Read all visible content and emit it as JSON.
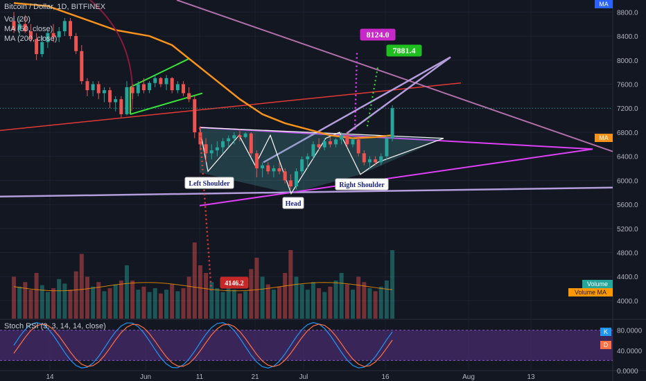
{
  "header": {
    "symbol_line": "Bitcoin / Dollar, 1D, BITFINEX",
    "vol_label": "Vol (20)",
    "ma50_label": "MA (50, close)",
    "ma200_label": "MA (200, close)"
  },
  "rsi_panel": {
    "label": "Stoch RSI (3, 3, 14, 14, close)",
    "k_badge": "K",
    "d_badge": "D"
  },
  "badges": {
    "ma_top": "MA",
    "ma_mid": "MA",
    "volume": "Volume",
    "volume_ma": "Volume MA"
  },
  "colors": {
    "up": "#26a69a",
    "down": "#ef5350",
    "ma50": "#f7931a",
    "magenta": "#e040fb",
    "lavender": "#b39ddb",
    "red_line": "#e53935",
    "green": "#39e639",
    "rsi_k": "#2196f3",
    "rsi_d": "#ff7043",
    "rsi_band": "#4a2c6e"
  },
  "chart_data": {
    "type": "candlestick",
    "title": "Bitcoin / Dollar, 1D, BITFINEX",
    "price_axis": {
      "range": [
        3700,
        9000
      ],
      "ticks": [
        "8800.0",
        "8400.0",
        "8000.0",
        "7600.0",
        "7200.0",
        "6800.0",
        "6400.0",
        "6000.0",
        "5600.0",
        "5200.0",
        "4800.0",
        "4400.0",
        "4000.0"
      ]
    },
    "time_axis": {
      "labels": [
        "14",
        "Jun",
        "11",
        "21",
        "Jul",
        "16",
        "Aug",
        "13"
      ]
    },
    "rsi_axis": {
      "ticks": [
        "80.0000",
        "40.0000",
        "0.0000"
      ],
      "range": [
        0,
        100
      ]
    },
    "candles": [
      {
        "o": 8650,
        "h": 8800,
        "l": 8450,
        "c": 8500
      },
      {
        "o": 8500,
        "h": 8700,
        "l": 8400,
        "c": 8600
      },
      {
        "o": 8600,
        "h": 8750,
        "l": 8450,
        "c": 8480
      },
      {
        "o": 8480,
        "h": 8600,
        "l": 8300,
        "c": 8350
      },
      {
        "o": 8350,
        "h": 8450,
        "l": 8000,
        "c": 8100
      },
      {
        "o": 8100,
        "h": 8400,
        "l": 8050,
        "c": 8300
      },
      {
        "o": 8300,
        "h": 8500,
        "l": 8200,
        "c": 8450
      },
      {
        "o": 8450,
        "h": 8600,
        "l": 8300,
        "c": 8380
      },
      {
        "o": 8380,
        "h": 8550,
        "l": 8300,
        "c": 8480
      },
      {
        "o": 8480,
        "h": 8700,
        "l": 8400,
        "c": 8650
      },
      {
        "o": 8650,
        "h": 8700,
        "l": 8350,
        "c": 8400
      },
      {
        "o": 8400,
        "h": 8450,
        "l": 8100,
        "c": 8150
      },
      {
        "o": 8150,
        "h": 8250,
        "l": 7600,
        "c": 7650
      },
      {
        "o": 7650,
        "h": 7700,
        "l": 7400,
        "c": 7500
      },
      {
        "o": 7500,
        "h": 7650,
        "l": 7400,
        "c": 7600
      },
      {
        "o": 7600,
        "h": 7650,
        "l": 7350,
        "c": 7450
      },
      {
        "o": 7450,
        "h": 7550,
        "l": 7300,
        "c": 7500
      },
      {
        "o": 7500,
        "h": 7550,
        "l": 7200,
        "c": 7300
      },
      {
        "o": 7300,
        "h": 7400,
        "l": 7150,
        "c": 7350
      },
      {
        "o": 7350,
        "h": 7400,
        "l": 7050,
        "c": 7100
      },
      {
        "o": 7100,
        "h": 7650,
        "l": 7080,
        "c": 7550
      },
      {
        "o": 7550,
        "h": 7600,
        "l": 7350,
        "c": 7450
      },
      {
        "o": 7450,
        "h": 7650,
        "l": 7400,
        "c": 7600
      },
      {
        "o": 7600,
        "h": 7700,
        "l": 7450,
        "c": 7500
      },
      {
        "o": 7500,
        "h": 7650,
        "l": 7450,
        "c": 7620
      },
      {
        "o": 7620,
        "h": 7750,
        "l": 7550,
        "c": 7700
      },
      {
        "o": 7700,
        "h": 7720,
        "l": 7550,
        "c": 7600
      },
      {
        "o": 7600,
        "h": 7750,
        "l": 7500,
        "c": 7700
      },
      {
        "o": 7700,
        "h": 7720,
        "l": 7450,
        "c": 7500
      },
      {
        "o": 7500,
        "h": 7650,
        "l": 7450,
        "c": 7600
      },
      {
        "o": 7600,
        "h": 7650,
        "l": 7400,
        "c": 7450
      },
      {
        "o": 7450,
        "h": 7550,
        "l": 7300,
        "c": 7350
      },
      {
        "o": 7350,
        "h": 7400,
        "l": 6700,
        "c": 6800
      },
      {
        "o": 6800,
        "h": 6900,
        "l": 6500,
        "c": 6600
      },
      {
        "o": 6600,
        "h": 6700,
        "l": 6300,
        "c": 6450
      },
      {
        "o": 6450,
        "h": 6600,
        "l": 6350,
        "c": 6500
      },
      {
        "o": 6500,
        "h": 6650,
        "l": 6400,
        "c": 6550
      },
      {
        "o": 6550,
        "h": 6700,
        "l": 6450,
        "c": 6650
      },
      {
        "o": 6650,
        "h": 6750,
        "l": 6550,
        "c": 6700
      },
      {
        "o": 6700,
        "h": 6800,
        "l": 6600,
        "c": 6750
      },
      {
        "o": 6750,
        "h": 6850,
        "l": 6650,
        "c": 6720
      },
      {
        "o": 6720,
        "h": 6800,
        "l": 6700,
        "c": 6780
      },
      {
        "o": 6780,
        "h": 6800,
        "l": 6400,
        "c": 6450
      },
      {
        "o": 6450,
        "h": 6500,
        "l": 6050,
        "c": 6200
      },
      {
        "o": 6200,
        "h": 6300,
        "l": 6050,
        "c": 6250
      },
      {
        "o": 6250,
        "h": 6300,
        "l": 6100,
        "c": 6150
      },
      {
        "o": 6150,
        "h": 6250,
        "l": 6050,
        "c": 6200
      },
      {
        "o": 6200,
        "h": 6300,
        "l": 6100,
        "c": 6150
      },
      {
        "o": 6150,
        "h": 6200,
        "l": 5950,
        "c": 6000
      },
      {
        "o": 6000,
        "h": 6100,
        "l": 5850,
        "c": 5900
      },
      {
        "o": 5900,
        "h": 6200,
        "l": 5850,
        "c": 6150
      },
      {
        "o": 6150,
        "h": 6400,
        "l": 6100,
        "c": 6350
      },
      {
        "o": 6350,
        "h": 6450,
        "l": 6200,
        "c": 6400
      },
      {
        "o": 6400,
        "h": 6650,
        "l": 6350,
        "c": 6600
      },
      {
        "o": 6600,
        "h": 6700,
        "l": 6500,
        "c": 6550
      },
      {
        "o": 6550,
        "h": 6700,
        "l": 6500,
        "c": 6650
      },
      {
        "o": 6650,
        "h": 6720,
        "l": 6550,
        "c": 6600
      },
      {
        "o": 6600,
        "h": 6700,
        "l": 6550,
        "c": 6680
      },
      {
        "o": 6680,
        "h": 6800,
        "l": 6600,
        "c": 6750
      },
      {
        "o": 6750,
        "h": 6800,
        "l": 6550,
        "c": 6600
      },
      {
        "o": 6600,
        "h": 6700,
        "l": 6550,
        "c": 6680
      },
      {
        "o": 6680,
        "h": 6750,
        "l": 6400,
        "c": 6450
      },
      {
        "o": 6450,
        "h": 6500,
        "l": 6250,
        "c": 6300
      },
      {
        "o": 6300,
        "h": 6400,
        "l": 6200,
        "c": 6350
      },
      {
        "o": 6350,
        "h": 6400,
        "l": 6250,
        "c": 6300
      },
      {
        "o": 6300,
        "h": 6450,
        "l": 6250,
        "c": 6400
      },
      {
        "o": 6400,
        "h": 6750,
        "l": 6350,
        "c": 6700
      },
      {
        "o": 6700,
        "h": 7250,
        "l": 6650,
        "c": 7200
      }
    ],
    "volume_bars": [
      0.55,
      0.42,
      0.48,
      0.38,
      0.6,
      0.44,
      0.35,
      0.4,
      0.52,
      0.46,
      0.38,
      0.62,
      0.85,
      0.55,
      0.42,
      0.48,
      0.36,
      0.4,
      0.45,
      0.5,
      0.7,
      0.5,
      0.38,
      0.42,
      0.35,
      0.4,
      0.33,
      0.38,
      0.45,
      0.36,
      0.4,
      0.55,
      1.0,
      0.7,
      0.6,
      0.48,
      0.4,
      0.35,
      0.42,
      0.38,
      0.33,
      0.36,
      0.65,
      0.8,
      0.55,
      0.45,
      0.38,
      0.42,
      0.6,
      0.9,
      0.55,
      0.45,
      0.38,
      0.48,
      0.4,
      0.35,
      0.42,
      0.5,
      0.6,
      0.45,
      0.38,
      0.55,
      0.48,
      0.4,
      0.36,
      0.42,
      0.5,
      0.9
    ],
    "ma50": [
      {
        "i": 0,
        "p": 8950
      },
      {
        "i": 6,
        "p": 8900
      },
      {
        "i": 12,
        "p": 8700
      },
      {
        "i": 18,
        "p": 8500
      },
      {
        "i": 24,
        "p": 8400
      },
      {
        "i": 28,
        "p": 8250
      },
      {
        "i": 32,
        "p": 7950
      },
      {
        "i": 36,
        "p": 7650
      },
      {
        "i": 40,
        "p": 7350
      },
      {
        "i": 44,
        "p": 7100
      },
      {
        "i": 48,
        "p": 6950
      },
      {
        "i": 52,
        "p": 6850
      },
      {
        "i": 56,
        "p": 6750
      },
      {
        "i": 60,
        "p": 6700
      },
      {
        "i": 64,
        "p": 6720
      },
      {
        "i": 67,
        "p": 6750
      }
    ],
    "annotations": {
      "left_shoulder": "Left Shoulder",
      "head": "Head",
      "right_shoulder": "Right Shoulder",
      "target_high": "8124.0",
      "target_mid": "7881.4",
      "target_low": "4146.2"
    },
    "last_price": "7200"
  }
}
